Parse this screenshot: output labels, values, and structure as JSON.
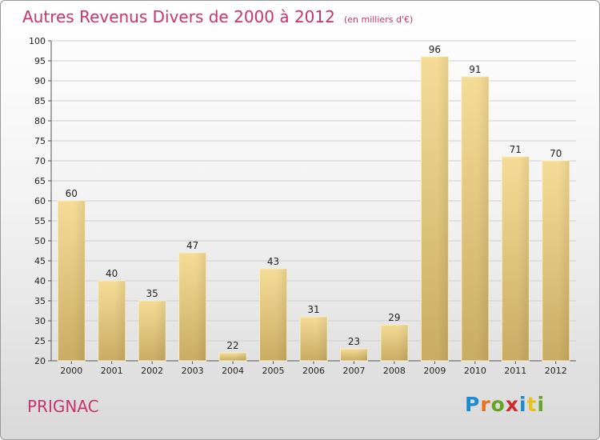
{
  "chart_data": {
    "type": "bar",
    "title": "Autres Revenus Divers de 2000 à 2012",
    "subtitle": "(en milliers d'€)",
    "categories": [
      "2000",
      "2001",
      "2002",
      "2003",
      "2004",
      "2005",
      "2006",
      "2007",
      "2008",
      "2009",
      "2010",
      "2011",
      "2012"
    ],
    "values": [
      60,
      40,
      35,
      47,
      22,
      43,
      31,
      23,
      29,
      96,
      91,
      71,
      70
    ],
    "ylim": [
      20,
      100
    ],
    "yticks": [
      20,
      25,
      30,
      35,
      40,
      45,
      50,
      55,
      60,
      65,
      70,
      75,
      80,
      85,
      90,
      95,
      100
    ],
    "grid": true,
    "bar_color": "#e8cf86",
    "title_color": "#c8346c"
  },
  "footer": {
    "location": "PRIGNAC",
    "logo_letters": [
      "P",
      "r",
      "o",
      "x",
      "i",
      "t",
      "i"
    ],
    "logo_colors": [
      "#1c8ad1",
      "#e8731c",
      "#66a524",
      "#cc2b2b",
      "#1c8ad1",
      "#e8c21c",
      "#66a524"
    ]
  }
}
